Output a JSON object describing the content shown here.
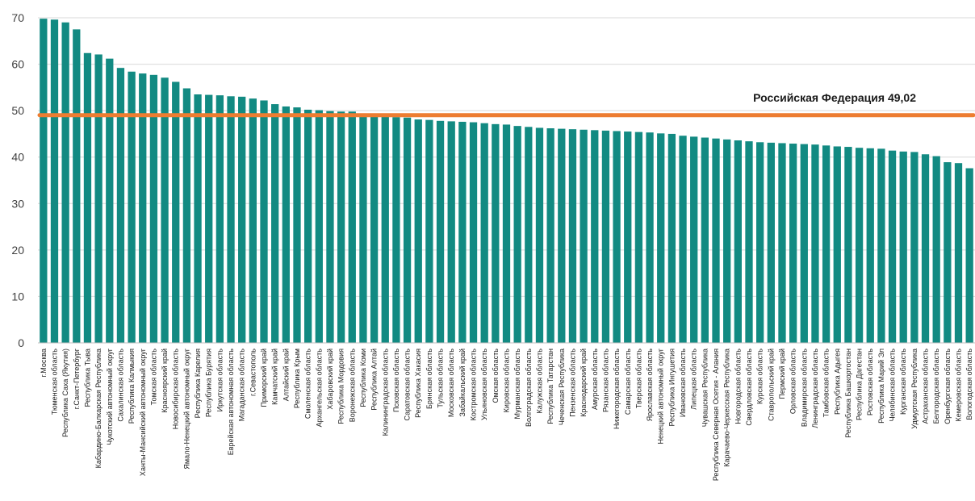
{
  "chart_data": {
    "type": "bar",
    "title": "",
    "xlabel": "",
    "ylabel": "",
    "ylim": [
      0,
      70
    ],
    "yticks": [
      0,
      10,
      20,
      30,
      40,
      50,
      60,
      70
    ],
    "grid": true,
    "legend": "none",
    "colors": {
      "bar": "#128a82",
      "reference_line": "#ed7d31",
      "grid": "#d9d9d9"
    },
    "categories": [
      "г.Москва",
      "Тюменская область",
      "Республика Саха (Якутия)",
      "г.Санкт-Петербург",
      "Республика Тыва",
      "Кабардино-Балкарская Республика",
      "Чукотский автономный округ",
      "Сахалинская область",
      "Республика Калмыкия",
      "Ханты-Мансийский автономный округ",
      "Томская область",
      "Красноярский край",
      "Новосибирская область",
      "Ямало-Ненецкий автономный округ",
      "Республика Карелия",
      "Республика Бурятия",
      "Иркутская область",
      "Еврейская автономная область",
      "Магаданская область",
      "г.Севастополь",
      "Приморский край",
      "Камчатский край",
      "Алтайский край",
      "Республика Крым",
      "Смоленская область",
      "Архангельская область",
      "Хабаровский край",
      "Республика Мордовия",
      "Воронежская область",
      "Республика Коми",
      "Республика Алтай",
      "Калининградская область",
      "Псковская область",
      "Саратовская область",
      "Республика Хакасия",
      "Брянская область",
      "Тульская область",
      "Московская область",
      "Забайкальский край",
      "Костромская область",
      "Ульяновская область",
      "Омская область",
      "Кировская область",
      "Мурманская область",
      "Волгоградская область",
      "Калужская область",
      "Республика Татарстан",
      "Чеченская Республика",
      "Пензенская область",
      "Краснодарский край",
      "Амурская область",
      "Рязанская область",
      "Нижегородская область",
      "Самарская область",
      "Тверская область",
      "Ярославская область",
      "Ненецкий автономный округ",
      "Республика Ингушетия",
      "Ивановская область",
      "Липецкая область",
      "Чувашская Республика",
      "Республика Северная Осетия - Алания",
      "Карачаево-Черкесская Республика",
      "Новгородская область",
      "Свердловская область",
      "Курская область",
      "Ставропольский край",
      "Пермский край",
      "Орловская область",
      "Владимирская область",
      "Ленинградская область",
      "Тамбовская область",
      "Республика Адыгея",
      "Республика Башкортостан",
      "Республика Дагестан",
      "Ростовская область",
      "Республика Марий Эл",
      "Челябинская область",
      "Курганская область",
      "Удмуртская Республика",
      "Астраханская область",
      "Белгородская область",
      "Оренбургская область",
      "Кемеровская область",
      "Вологодская область"
    ],
    "values": [
      69.8,
      69.6,
      69.0,
      67.5,
      62.4,
      62.1,
      61.2,
      59.2,
      58.4,
      58.0,
      57.7,
      57.1,
      56.2,
      54.8,
      53.5,
      53.4,
      53.3,
      53.1,
      53.0,
      52.6,
      52.2,
      51.4,
      50.9,
      50.7,
      50.2,
      50.1,
      49.9,
      49.8,
      49.8,
      49.0,
      48.8,
      48.7,
      48.6,
      48.5,
      48.1,
      48.0,
      47.8,
      47.7,
      47.6,
      47.5,
      47.3,
      47.1,
      47.0,
      46.7,
      46.5,
      46.3,
      46.2,
      46.1,
      46.0,
      45.9,
      45.8,
      45.7,
      45.6,
      45.5,
      45.4,
      45.3,
      45.1,
      45.0,
      44.6,
      44.4,
      44.2,
      44.0,
      43.8,
      43.6,
      43.4,
      43.2,
      43.1,
      43.0,
      42.9,
      42.8,
      42.7,
      42.5,
      42.3,
      42.2,
      42.0,
      41.9,
      41.8,
      41.4,
      41.2,
      41.1,
      40.6,
      40.2,
      38.9,
      38.7,
      37.6
    ],
    "reference_line": {
      "value": 49.02,
      "label": "Российская Федерация 49,02"
    }
  }
}
